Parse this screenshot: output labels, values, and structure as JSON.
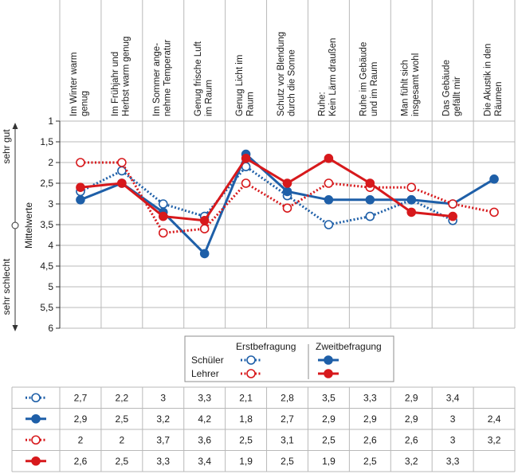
{
  "chart_data": {
    "type": "line",
    "categories": [
      [
        "Im Winter warm",
        "genug"
      ],
      [
        "Im Frühjahr und",
        "Herbst warm genug"
      ],
      [
        "Im Sommer ange-",
        "nehme Temperatur"
      ],
      [
        "Genug frische Luft",
        "im Raum"
      ],
      [
        "Genug Licht im",
        "Raum"
      ],
      [
        "Schutz vor Blendung",
        "durch die Sonne"
      ],
      [
        "Ruhe:",
        "Kein Lärm draußen"
      ],
      [
        "Ruhe im Gebäude",
        "und im Raum"
      ],
      [
        "Man fühlt sich",
        "insgesamt wohl"
      ],
      [
        "Das Gebäude",
        "gefällt mir"
      ],
      [
        "Die Akustik in den",
        "Räumen"
      ]
    ],
    "ylabel": "Mittelwerte",
    "ylim": [
      1,
      6
    ],
    "y_ticks": [
      "1",
      "1,5",
      "2",
      "2,5",
      "3",
      "3,5",
      "4",
      "4,5",
      "5",
      "5,5",
      "6"
    ],
    "y_inverted": true,
    "axis_top_label": "sehr gut",
    "axis_bottom_label": "sehr schlecht",
    "grid": true,
    "legend": {
      "placement": "bottom",
      "col1_title": "Erstbefragung",
      "col2_title": "Zweitbefragung",
      "row1_label": "Schüler",
      "row2_label": "Lehrer"
    },
    "series": [
      {
        "group": "Schüler",
        "survey": "Erstbefragung",
        "color": "#1e5fa8",
        "style": "dotted",
        "marker": "open",
        "values": [
          2.7,
          2.2,
          3,
          3.3,
          2.1,
          2.8,
          3.5,
          3.3,
          2.9,
          3.4,
          null
        ],
        "labels": [
          "2,7",
          "2,2",
          "3",
          "3,3",
          "2,1",
          "2,8",
          "3,5",
          "3,3",
          "2,9",
          "3,4",
          ""
        ]
      },
      {
        "group": "Schüler",
        "survey": "Zweitbefragung",
        "color": "#1e5fa8",
        "style": "solid",
        "marker": "filled",
        "values": [
          2.9,
          2.5,
          3.2,
          4.2,
          1.8,
          2.7,
          2.9,
          2.9,
          2.9,
          3,
          2.4
        ],
        "labels": [
          "2,9",
          "2,5",
          "3,2",
          "4,2",
          "1,8",
          "2,7",
          "2,9",
          "2,9",
          "2,9",
          "3",
          "2,4"
        ]
      },
      {
        "group": "Lehrer",
        "survey": "Erstbefragung",
        "color": "#d7191c",
        "style": "dotted",
        "marker": "open",
        "values": [
          2,
          2,
          3.7,
          3.6,
          2.5,
          3.1,
          2.5,
          2.6,
          2.6,
          3,
          3.2
        ],
        "labels": [
          "2",
          "2",
          "3,7",
          "3,6",
          "2,5",
          "3,1",
          "2,5",
          "2,6",
          "2,6",
          "3",
          "3,2"
        ]
      },
      {
        "group": "Lehrer",
        "survey": "Zweitbefragung",
        "color": "#d7191c",
        "style": "solid",
        "marker": "filled",
        "values": [
          2.6,
          2.5,
          3.3,
          3.4,
          1.9,
          2.5,
          1.9,
          2.5,
          3.2,
          3.3,
          null
        ],
        "labels": [
          "2,6",
          "2,5",
          "3,3",
          "3,4",
          "1,9",
          "2,5",
          "1,9",
          "2,5",
          "3,2",
          "3,3",
          ""
        ]
      }
    ]
  }
}
